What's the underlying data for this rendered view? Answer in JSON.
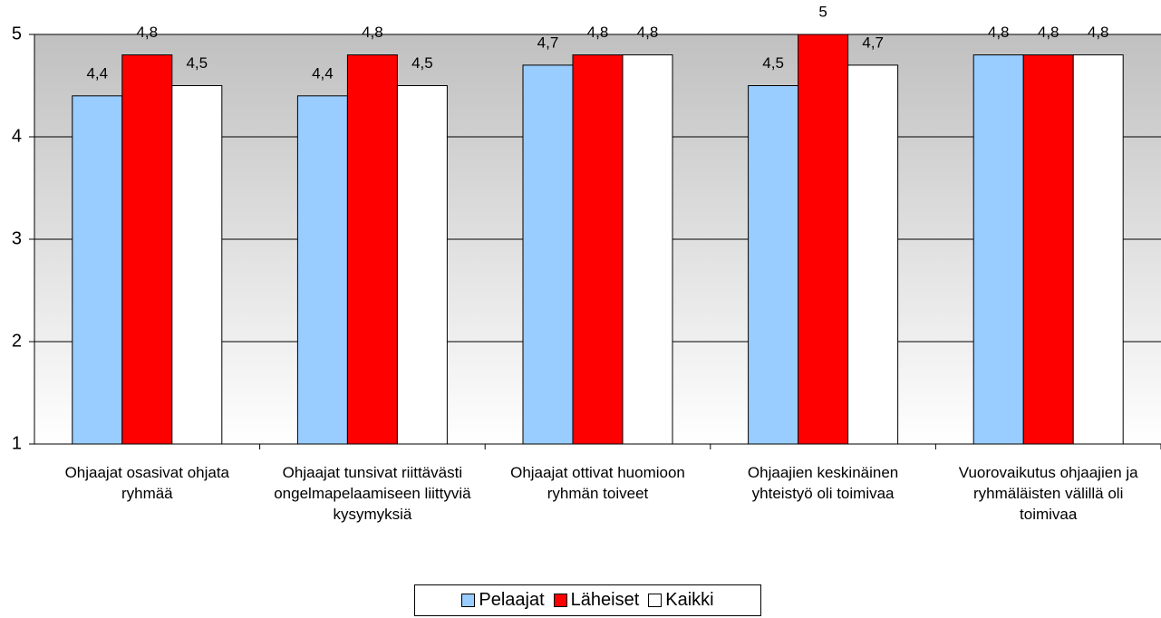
{
  "chart_data": {
    "type": "bar",
    "categories": [
      "Ohjaajat osasivat ohjata ryhmää",
      "Ohjaajat tunsivat riittävästi ongelmapelaamiseen liittyviä kysymyksiä",
      "Ohjaajat ottivat huomioon ryhmän toiveet",
      "Ohjaajien keskinäinen yhteistyö oli toimivaa",
      "Vuorovaikutus ohjaajien ja ryhmäläisten välillä oli toimivaa"
    ],
    "series": [
      {
        "name": "Pelaajat",
        "color": "#99ccff",
        "values": [
          4.4,
          4.4,
          4.7,
          4.5,
          4.8
        ],
        "value_labels": [
          "4,4",
          "4,4",
          "4,7",
          "4,5",
          "4,8"
        ]
      },
      {
        "name": "Läheiset",
        "color": "#ff0000",
        "values": [
          4.8,
          4.8,
          4.8,
          5,
          4.8
        ],
        "value_labels": [
          "4,8",
          "4,8",
          "4,8",
          "5",
          "4,8"
        ]
      },
      {
        "name": "Kaikki",
        "color": "#ffffff",
        "values": [
          4.5,
          4.5,
          4.8,
          4.7,
          4.8
        ],
        "value_labels": [
          "4,5",
          "4,5",
          "4,8",
          "4,7",
          "4,8"
        ]
      }
    ],
    "ylim": [
      1,
      5
    ],
    "yticks": [
      1,
      2,
      3,
      4,
      5
    ],
    "grid": true
  }
}
